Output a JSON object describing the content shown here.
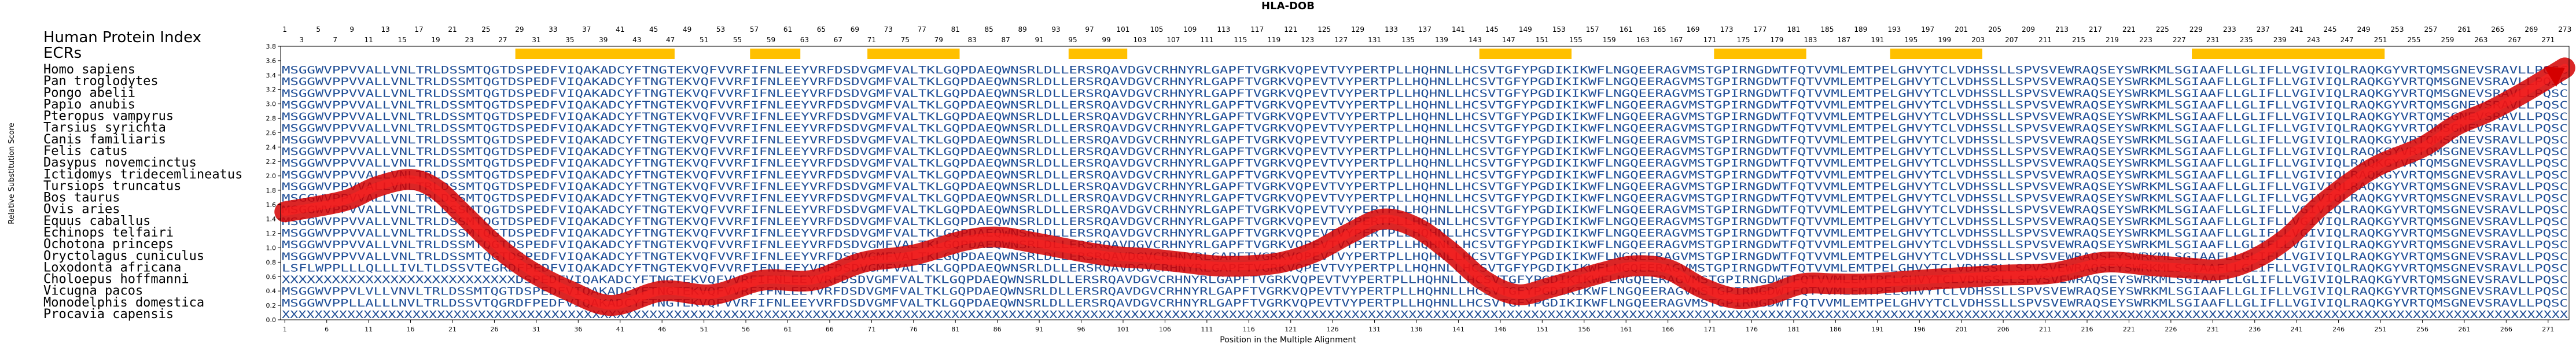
{
  "chart_data": {
    "type": "line",
    "title": "HLA-DOB",
    "xlabel": "Position in the Multiple Alignment",
    "ylabel": "Relative Substitution Score",
    "ylim": [
      0,
      3.8
    ],
    "yticks": [
      "0.0",
      "0.2",
      "0.4",
      "0.6",
      "0.8",
      "1.0",
      "1.2",
      "1.4",
      "1.6",
      "1.8",
      "2.0",
      "2.2",
      "2.4",
      "2.6",
      "2.8",
      "3.0",
      "3.2",
      "3.4",
      "3.6",
      "3.8"
    ],
    "xlim": [
      1,
      273
    ],
    "xtick_start": 1,
    "xtick_step": 5,
    "grid": false,
    "line_color": "#d40000",
    "ecr_color": "#ffc000",
    "index_title": "Human Protein Index",
    "ecr_label": "ECRs",
    "x": [
      1,
      8,
      12,
      16,
      19,
      22,
      26,
      30,
      35,
      40,
      46,
      52,
      58,
      64,
      70,
      76,
      82,
      86,
      90,
      96,
      100,
      104,
      108,
      112,
      116,
      120,
      124,
      128,
      132,
      136,
      140,
      144,
      148,
      152,
      158,
      162,
      166,
      170,
      174,
      178,
      182,
      186,
      190,
      196,
      200,
      206,
      212,
      218,
      224,
      228,
      232,
      236,
      240,
      244,
      250,
      256,
      260,
      264,
      268,
      273
    ],
    "y": [
      1.5,
      1.65,
      1.85,
      1.95,
      1.82,
      1.5,
      1.05,
      0.7,
      0.4,
      0.2,
      0.4,
      0.35,
      0.55,
      0.55,
      0.8,
      0.9,
      1.1,
      1.15,
      1.08,
      0.95,
      0.88,
      0.85,
      0.8,
      0.75,
      0.75,
      0.8,
      0.95,
      1.2,
      1.4,
      1.28,
      0.95,
      0.55,
      0.35,
      0.45,
      0.65,
      0.75,
      0.7,
      0.45,
      0.3,
      0.35,
      0.5,
      0.5,
      0.5,
      0.55,
      0.58,
      0.62,
      0.65,
      0.8,
      0.75,
      0.72,
      0.7,
      0.85,
      1.15,
      1.6,
      2.1,
      2.4,
      2.7,
      2.9,
      3.15,
      3.5
    ],
    "ecr_ranges": [
      [
        29,
        47
      ],
      [
        57,
        62
      ],
      [
        71,
        81
      ],
      [
        95,
        101
      ],
      [
        144,
        154
      ],
      [
        172,
        182
      ],
      [
        193,
        203
      ],
      [
        229,
        251
      ]
    ],
    "species": [
      "Homo sapiens",
      "Pan troglodytes",
      "Pongo abelii",
      "Papio anubis",
      "Pteropus vampyrus",
      "Tarsius syrichta",
      "Canis familiaris",
      "Felis catus",
      "Dasypus novemcinctus",
      "Ictidomys tridecemlineatus",
      "Tursiops truncatus",
      "Bos taurus",
      "Ovis aries",
      "Equus caballus",
      "Echinops telfairi",
      "Ochotona princeps",
      "Oryctolagus cuniculus",
      "Loxodonta africana",
      "Choloepus hoffmanni",
      "Vicugna pacos",
      "Monodelphis domestica",
      "Procavia capensis"
    ],
    "sequences": [
      "MSGGWVPPVVALLVNLTRLDSSMTQGTDSPEDFVIQAKADCYFTNGTEKVQFVVRFIFNLEEYVRFDSDVGMFVALTKLGQPDAEQWNSRLDLLERSRQAVDGVCRHNYRLGAPFTVGRKVQPEVTVYPERTPLLHQHNLLHCSVTGFYPGDIKIKWFLNGQEERAGVMSTGPIRNGDWTFQTVVMLEMTPELGHVYTCLVDHSSLLSPVSVEWRAQSEYSWRKMLSGIAAFLLGLIFLLVGIVIQLRAQKGYVRTQMSGNEVSRAVLLPQSC",
      "MSGGWVPPVVALLVNLTRLDSSMTQGTDSPEDFVIQAKADCYFTNGTEKVQFVVRFIFNLEEYVRFDSDVGMFVALTKLGQPDAEQWNSRLDLLERSRQAVDGVCRHNYRLGAPFTVGRKVQPEVTVYPERTPLLHQHNLLHCSVTGFYPGDIKIKWFLNGQEERAGVMSTGPIRNGDWTFQTVVMLEMTPELGHVYTCLVDHSSLLSPVSVEWRAQSEYSWRKMLSGIAAFLLGLIFLLVGIVIQLRAQKGYVRTQMSGNEVSRAVLLPQSC",
      "MSGGWVPPVVALLVNLTRLDSSMTQGTDSPEDFVIQAKADCYFTNGTEKVQFVVRFIFNLEEYVRFDSDVGMFVALTKLGQPDAEQWNSRLDLLERSRQAVDGVCRHNYRLGAPFTVGRKVQPEVTVYPERTPLLHQHNLLHCSVTGFYPGDIKIKWFLNGQEERAGVMSTGPIRNGDWTFQTVVMLEMTPELGHVYTCLVDHSSLLSPVSVEWRAQSEYSWRKMLSGIAAFLLGLIFLLVGIVIQLRAQKGYVRTQMSGNEVSRAVLLPQSC",
      "MSGGWVPPVVALLVNLTRLDSSMTQGTDSPEDFVIQAKADCYFTNGTEKVQFVVRFIFNLEEYVRFDSDVGMFVALTKLGQPDAEQWNSRLDLLERSRQAVDGVCRHNYRLGAPFTVGRKVQPEVTVYPERTPLLHQHNLLHCSVTGFYPGDIKIKWFLNGQEERAGVMSTGPIRNGDWTFQTVVMLEMTPELGHVYTCLVDHSSLLSPVSVEWRAQSEYSWRKMLSGIAAFLLGLIFLLVGIVIQLRAQKGYVRTQMSGNEVSRAVLLPQSC",
      "MSGGWVPPVVALLVNLTRLDSSMTQGTDSPEDFVIQAKADCYFTNGTEKVQFVVRFIFNLEEYVRFDSDVGMFVALTKLGQPDAEQWNSRLDLLERSRQAVDGVCRHNYRLGAPFTVGRKVQPEVTVYPERTPLLHQHNLLHCSVTGFYPGDIKIKWFLNGQEERAGVMSTGPIRNGDWTFQTVVMLEMTPELGHVYTCLVDHSSLLSPVSVEWRAQSEYSWRKMLSGIAAFLLGLIFLLVGIVIQLRAQKGYVRTQMSGNEVSRAVLLPQSC",
      "MSGGWVPPVVALLVNLTRLDSSMTQGTDSPEDFVIQAKADCYFTNGTEKVQFVVRFIFNLEEYVRFDSDVGMFVALTKLGQPDAEQWNSRLDLLERSRQAVDGVCRHNYRLGAPFTVGRKVQPEVTVYPERTPLLHQHNLLHCSVTGFYPGDIKIKWFLNGQEERAGVMSTGPIRNGDWTFQTVVMLEMTPELGHVYTCLVDHSSLLSPVSVEWRAQSEYSWRKMLSGIAAFLLGLIFLLVGIVIQLRAQKGYVRTQMSGNEVSRAVLLPQSC",
      "MSGGWVPPVVALLVNLTRLDSSMTQGTDSPEDFVIQAKADCYFTNGTEKVQFVVRFIFNLEEYVRFDSDVGMFVALTKLGQPDAEQWNSRLDLLERSRQAVDGVCRHNYRLGAPFTVGRKVQPEVTVYPERTPLLHQHNLLHCSVTGFYPGDIKIKWFLNGQEERAGVMSTGPIRNGDWTFQTVVMLEMTPELGHVYTCLVDHSSLLSPVSVEWRAQSEYSWRKMLSGIAAFLLGLIFLLVGIVIQLRAQKGYVRTQMSGNEVSRAVLLPQSC",
      "MSGGWVPPVVALLVNLTRLDSSMTQGTDSPEDFVIQAKADCYFTNGTEKVQFVVRFIFNLEEYVRFDSDVGMFVALTKLGQPDAEQWNSRLDLLERSRQAVDGVCRHNYRLGAPFTVGRKVQPEVTVYPERTPLLHQHNLLHCSVTGFYPGDIKIKWFLNGQEERAGVMSTGPIRNGDWTFQTVVMLEMTPELGHVYTCLVDHSSLLSPVSVEWRAQSEYSWRKMLSGIAAFLLGLIFLLVGIVIQLRAQKGYVRTQMSGNEVSRAVLLPQSC",
      "MSGGWVPPVVALLVNLTRLDSSMTQGTDSPEDFVIQAKADCYFTNGTEKVQFVVRFIFNLEEYVRFDSDVGMFVALTKLGQPDAEQWNSRLDLLERSRQAVDGVCRHNYRLGAPFTVGRKVQPEVTVYPERTPLLHQHNLLHCSVTGFYPGDIKIKWFLNGQEERAGVMSTGPIRNGDWTFQTVVMLEMTPELGHVYTCLVDHSSLLSPVSVEWRAQSEYSWRKMLSGIAAFLLGLIFLLVGIVIQLRAQKGYVRTQMSGNEVSRAVLLPQSC",
      "MSGGWVPPVVALLVNLTRLDSSMTQGTDSPEDFVIQAKADCYFTNGTEKVQFVVRFIFNLEEYVRFDSDVGMFVALTKLGQPDAEQWNSRLDLLERSRQAVDGVCRHNYRLGAPFTVGRKVQPEVTVYPERTPLLHQHNLLHCSVTGFYPGDIKIKWFLNGQEERAGVMSTGPIRNGDWTFQTVVMLEMTPELGHVYTCLVDHSSLLSPVSVEWRAQSEYSWRKMLSGIAAFLLGLIFLLVGIVIQLRAQKGYVRTQMSGNEVSRAVLLPQSC",
      "MSGGWVPPVVALLVNLTRLDSSMTQGTDSPEDFVIQAKADCYFTNGTEKVQFVVRFIFNLEEYVRFDSDVGMFVALTKLGQPDAEQWNSRLDLLERSRQAVDGVCRHNYRLGAPFTVGRKVQPEVTVYPERTPLLHQHNLLHCSVTGFYPGDIKIKWFLNGQEERAGVMSTGPIRNGDWTFQTVVMLEMTPELGHVYTCLVDHSSLLSPVSVEWRAQSEYSWRKMLSGIAAFLLGLIFLLVGIVIQLRAQKGYVRTQMSGNEVSRAVLLPQSC",
      "MSGGWVPPVVALLVNLTRLDSSMTQGTDSPEDFVIQAKADCYFTNGTEKVQFVVRFIFNLEEYVRFDSDVGMFVALTKLGQPDAEQWNSRLDLLERSRQAVDGVCRHNYRLGAPFTVGRKVQPEVTVYPERTPLLHQHNLLHCSVTGFYPGDIKIKWFLNGQEERAGVMSTGPIRNGDWTFQTVVMLEMTPELGHVYTCLVDHSSLLSPVSVEWRAQSEYSWRKMLSGIAAFLLGLIFLLVGIVIQLRAQKGYVRTQMSGNEVSRAVLLPQSC",
      "MSGGWVPPVVALLVNLTRLDSSMTQGTDSPEDFVIQAKADCYFTNGTEKVQFVVRFIFNLEEYVRFDSDVGMFVALTKLGQPDAEQWNSRLDLLERSRQAVDGVCRHNYRLGAPFTVGRKVQPEVTVYPERTPLLHQHNLLHCSVTGFYPGDIKIKWFLNGQEERAGVMSTGPIRNGDWTFQTVVMLEMTPELGHVYTCLVDHSSLLSPVSVEWRAQSEYSWRKMLSGIAAFLLGLIFLLVGIVIQLRAQKGYVRTQMSGNEVSRAVLLPQSC",
      "MSGGWVPPVVALLVNLTRLDSSMTQGTDSPEDFVIQAKADCYFTNGTEKVQFVVRFIFNLEEYVRFDSDVGMFVALTKLGQPDAEQWNSRLDLLERSRQAVDGVCRHNYRLGAPFTVGRKVQPEVTVYPERTPLLHQHNLLHCSVTGFYPGDIKIKWFLNGQEERAGVMSTGPIRNGDWTFQTVVMLEMTPELGHVYTCLVDHSSLLSPVSVEWRAQSEYSWRKMLSGIAAFLLGLIFLLVGIVIQLRAQKGYVRTQMSGNEVSRAVLLPQSC",
      "MSGGWVPPVVALLVNLTRLDSSMTQGTDSPEDFVIQAKADCYFTNGTEKVQFVVRFIFNLEEYVRFDSDVGMFVALTKLGQPDAEQWNSRLDLLERSRQAVDGVCRHNYRLGAPFTVGRKVQPEVTVYPERTPLLHQHNLLHCSVTGFYPGDIKIKWFLNGQEERAGVMSTGPIRNGDWTFQTVVMLEMTPELGHVYTCLVDHSSLLSPVSVEWRAQSEYSWRKMLSGIAAFLLGLIFLLVGIVIQLRAQKGYVRTQMSGNEVSRAVLLPQSC",
      "MSGGWVPPVVALLVNLTRLDSSMTQGTDSPEDFVIQAKADCYFTNGTEKVQFVVRFIFNLEEYVRFDSDVGMFVALTKLGQPDAEQWNSRLDLLERSRQAVDGVCRHNYRLGAPFTVGRKVQPEVTVYPERTPLLHQHNLLHCSVTGFYPGDIKIKWFLNGQEERAGVMSTGPIRNGDWTFQTVVMLEMTPELGHVYTCLVDHSSLLSPVSVEWRAQSEYSWRKMLSGIAAFLLGLIFLLVGIVIQLRAQKGYVRTQMSGNEVSRAVLLPQSC",
      "MSGGWVPPVVALLVNLTRLDSSMTQGTDSPEDFVIQAKADCYFTNGTEKVQFVVRFIFNLEEYVRFDSDVGMFVALTKLGQPDAEQWNSRLDLLERSRQAVDGVCRHNYRLGAPFTVGRKVQPEVTVYPERTPLLHQHNLLHCSVTGFYPGDIKIKWFLNGQEERAGVMSTGPIRNGDWTFQTVVMLEMTPELGHVYTCLVDHSSLLSPVSVEWRAQSEYSWRKMLSGIAAFLLGLIFLLVGIVIQLRAQKGYVRTQMSGNEVSRAVLLPQSC",
      "LSFLWPPLLLQLLLIVLTLDSSVTEGRDFPEDFVIQAKADCYFTNGTEKVQFVVRFIFNLEEYVRFDSDVGMFVALTKLGQPDAEQWNSRLDLLERSRQAVDGVCRHNYRLGAPFTVGRKVQPEVTVYPERTPLLHQHNLLHCSVTGFYPGDIKIKWFLNGQEERAGVMSTGPIRNGDWTFQTVVMLEMTPELGHVYTCLVDHSSLLSPVSVEWRAQSEYSWRKMLSGIAAFLLGLIFLLVGIVIQLRAQKGYVRTQMSGNEVSRAVLLPQSC",
      "XXXXXXXXXXXXXXXXXXXXXXXXXXXXDSPEDFVIQAKADCYFTNGTEKVQFVVRFIFNLEEYVRFDSDVGMFVALTKLGQPDAEQWNSRLDLLERSRQAVDGVCRHNYRLGAPFTVGRKVQPEVTVYPERTPLLHQHNLLHCSVTGFYPGDIKIKWFLNGQEERAGVMSTGPIRNGDWTFQTVVMLEMTPELGHVYTCLVDHSSLLSPVSVEWRAQSEYSWRKMLSGIAAFLLGLIFLLVGIVIQLRAQKGYVRTQMSGNEVSRAVLLPQSC",
      "MSGGWVPPVLVLLVNVLTRLDSSMTQGTDSPEDFVIQAKADCYFTNGTEKVQFVVRFIFNLEEYVRFDSDVGMFVALTKLGQPDAEQWNSRLDLLERSRQAVDGVCRHNYRLGAPFTVGRKVQPEVTVYPERTPLLHQHNLLHCSVTGFYPGDIKIKWFLNGQEERAGVMSTGPIRNGDWTFQTVVMLEMTPELGHVYTCLVDHSSLLSPVSVEWRAQSEYSWRKMLSGIAAFLLGLIFLLVGIVIQLRAQKGYVRTQMSGNEVSRAVLLPQSC",
      "MSGGWVPPLLALLLNVLTRLDSSVTQGRDFPEDFVIQAKADCYFTNGTEKVQFVVRFIFNLEEYVRFDSDVGMFVALTKLGQPDAEQWNSRLDLLERSRQAVDGVCRHNYRLGAPFTVGRKVQPEVTVYPERTPLLHQHNLLHCSVTGFYPGDIKIKWFLNGQEERAGVMSTGPIRNGDWTFQTVVMLEMTPELGHVYTCLVDHSSLLSPVSVEWRAQSEYSWRKMLSGIAAFLLGLIFLLVGIVIQLRAQKGYVRTQMSGNEVSRAVLLPQSC",
      "XXXXXXXXXXXXXXXXXXXXXXXXXXXXXXXXXXXXXXXXXXXXXXXXXXXXXXXXXXXXXXXXXXXXXXXXXXXXXXXXXXXXXXXXXXXXXXXXXXXXXXXXXXXXXXXXXXXXXXXXXXXXXXXXXXXXXXXXXXXXXXXXXXXXXXXXXXXXXXXXXXXXXXXXXXXXXXXXXXXXXXXXXXXXXXXXXXXXXXXXXXXXXXXXXXXXXXXXXXXXXXXXXXXXXXXXXXXXXXXXXXXXXXXXXXXXXXXXXXXXXXXXXXXXXXXXXXXXXXXX"
    ]
  }
}
